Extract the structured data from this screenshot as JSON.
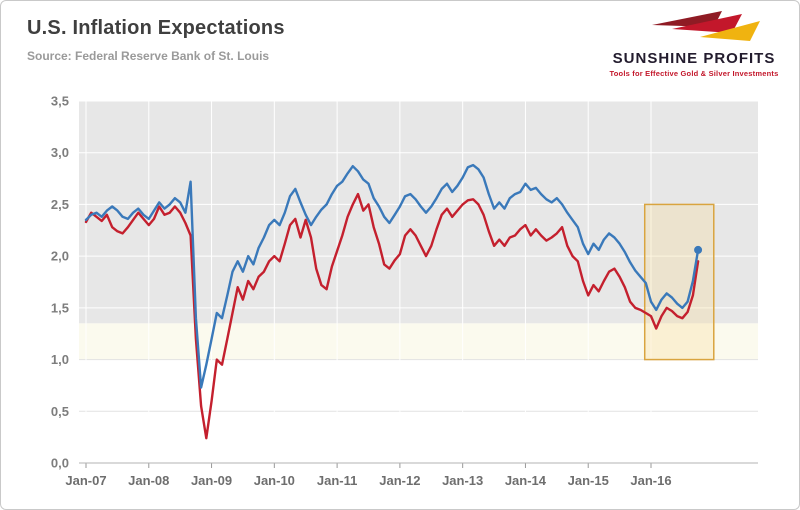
{
  "header": {
    "title": "U.S. Inflation Expectations",
    "subtitle": "Source: Federal Reserve Bank of St. Louis"
  },
  "logo": {
    "name": "SUNSHINE PROFITS",
    "tagline": "Tools for Effective Gold & Silver Investments"
  },
  "chart_data": {
    "type": "line",
    "title": "U.S. Inflation Expectations",
    "x_tick_labels": [
      "Jan-07",
      "Jan-08",
      "Jan-09",
      "Jan-10",
      "Jan-11",
      "Jan-12",
      "Jan-13",
      "Jan-14",
      "Jan-15",
      "Jan-16"
    ],
    "y_tick_labels": [
      "0,0",
      "0,5",
      "1,0",
      "1,5",
      "2,0",
      "2,5",
      "3,0",
      "3,5"
    ],
    "ylim": [
      0,
      3.5
    ],
    "months_per_tick": 12,
    "grid": true,
    "legend": "none",
    "series": [
      {
        "name": "red-line",
        "color": "#c4202e",
        "end_dot": false,
        "values": [
          2.33,
          2.42,
          2.38,
          2.34,
          2.4,
          2.28,
          2.24,
          2.22,
          2.28,
          2.35,
          2.42,
          2.36,
          2.3,
          2.36,
          2.48,
          2.4,
          2.42,
          2.48,
          2.42,
          2.32,
          2.2,
          1.2,
          0.55,
          0.24,
          0.6,
          1.0,
          0.95,
          1.2,
          1.45,
          1.7,
          1.58,
          1.76,
          1.68,
          1.8,
          1.85,
          1.95,
          2.0,
          1.95,
          2.12,
          2.3,
          2.36,
          2.18,
          2.35,
          2.18,
          1.88,
          1.72,
          1.68,
          1.9,
          2.05,
          2.2,
          2.38,
          2.5,
          2.6,
          2.44,
          2.5,
          2.28,
          2.12,
          1.92,
          1.88,
          1.96,
          2.02,
          2.2,
          2.26,
          2.2,
          2.1,
          2.0,
          2.1,
          2.26,
          2.4,
          2.46,
          2.38,
          2.44,
          2.5,
          2.54,
          2.55,
          2.5,
          2.4,
          2.24,
          2.1,
          2.16,
          2.1,
          2.18,
          2.2,
          2.26,
          2.3,
          2.2,
          2.26,
          2.2,
          2.15,
          2.18,
          2.22,
          2.28,
          2.1,
          2.0,
          1.95,
          1.76,
          1.62,
          1.72,
          1.66,
          1.76,
          1.85,
          1.88,
          1.8,
          1.7,
          1.56,
          1.5,
          1.48,
          1.45,
          1.42,
          1.3,
          1.42,
          1.5,
          1.47,
          1.42,
          1.4,
          1.46,
          1.62,
          1.95
        ]
      },
      {
        "name": "blue-line",
        "color": "#3a79ba",
        "end_dot": true,
        "values": [
          2.35,
          2.4,
          2.42,
          2.38,
          2.44,
          2.48,
          2.44,
          2.38,
          2.36,
          2.42,
          2.46,
          2.4,
          2.36,
          2.44,
          2.52,
          2.46,
          2.5,
          2.56,
          2.52,
          2.42,
          2.72,
          1.4,
          0.73,
          0.95,
          1.2,
          1.45,
          1.4,
          1.62,
          1.85,
          1.95,
          1.85,
          2.0,
          1.92,
          2.08,
          2.18,
          2.3,
          2.35,
          2.3,
          2.42,
          2.58,
          2.65,
          2.52,
          2.4,
          2.3,
          2.38,
          2.45,
          2.5,
          2.6,
          2.68,
          2.72,
          2.8,
          2.87,
          2.82,
          2.74,
          2.7,
          2.56,
          2.48,
          2.38,
          2.32,
          2.4,
          2.48,
          2.58,
          2.6,
          2.55,
          2.48,
          2.42,
          2.48,
          2.56,
          2.65,
          2.7,
          2.62,
          2.68,
          2.76,
          2.86,
          2.88,
          2.84,
          2.76,
          2.6,
          2.46,
          2.52,
          2.46,
          2.56,
          2.6,
          2.62,
          2.7,
          2.64,
          2.66,
          2.6,
          2.55,
          2.52,
          2.56,
          2.5,
          2.42,
          2.35,
          2.28,
          2.12,
          2.02,
          2.12,
          2.06,
          2.16,
          2.22,
          2.18,
          2.12,
          2.04,
          1.94,
          1.86,
          1.8,
          1.74,
          1.56,
          1.48,
          1.58,
          1.64,
          1.6,
          1.54,
          1.5,
          1.56,
          1.76,
          2.06
        ]
      }
    ],
    "background_bands": [
      {
        "from": 1.35,
        "to": 3.5,
        "color": "#e7e7e7"
      },
      {
        "from": 1.0,
        "to": 1.35,
        "color": "#fbfaee"
      }
    ],
    "highlight_box": {
      "from_month_index": 106.8,
      "to_month_index": 120,
      "y_from": 1.0,
      "y_to": 2.5,
      "stroke": "#d9a43f",
      "fill": "rgba(247,219,149,0.30)"
    }
  }
}
